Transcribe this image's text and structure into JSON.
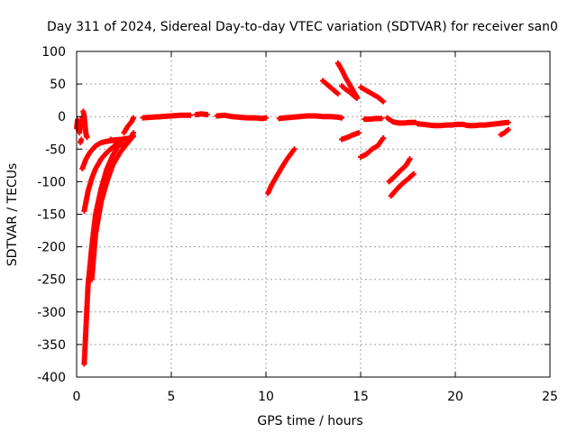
{
  "chart_data": {
    "type": "scatter",
    "title": "Day 311 of 2024, Sidereal Day-to-day VTEC variation (SDTVAR) for receiver san0",
    "xlabel": "GPS time / hours",
    "ylabel": "SDTVAR / TECUs",
    "xlim": [
      0,
      25
    ],
    "ylim": [
      -400,
      100
    ],
    "xticks": [
      0,
      5,
      10,
      15,
      20,
      25
    ],
    "yticks": [
      -400,
      -350,
      -300,
      -250,
      -200,
      -150,
      -100,
      -50,
      0,
      50,
      100
    ],
    "grid": true,
    "marker": "+",
    "series": [
      {
        "name": "SDTVAR",
        "color": "#ff0000",
        "arcs": [
          {
            "x": [
              0.0,
              0.05,
              0.1,
              0.15,
              0.2,
              0.3
            ],
            "y": [
              -18,
              -5,
              -10,
              -25,
              -12,
              -2
            ]
          },
          {
            "x": [
              0.35,
              0.4,
              0.45,
              0.5,
              0.55
            ],
            "y": [
              8,
              0,
              -15,
              -28,
              -32
            ]
          },
          {
            "x": [
              0.2,
              0.25
            ],
            "y": [
              -40,
              -35
            ]
          },
          {
            "x": [
              0.3,
              0.5,
              0.7,
              1.0,
              1.3,
              1.6,
              2.0,
              2.4,
              2.8
            ],
            "y": [
              -80,
              -65,
              -55,
              -45,
              -40,
              -38,
              -36,
              -35,
              -33
            ]
          },
          {
            "x": [
              0.4,
              0.6,
              0.8,
              1.0,
              1.3,
              1.6,
              2.0,
              2.4
            ],
            "y": [
              -145,
              -115,
              -95,
              -80,
              -65,
              -55,
              -45,
              -40
            ]
          },
          {
            "x": [
              0.4,
              0.5,
              0.6,
              0.8,
              1.0,
              1.3,
              1.6,
              1.9,
              2.2
            ],
            "y": [
              -380,
              -320,
              -260,
              -200,
              -150,
              -110,
              -80,
              -60,
              -45
            ]
          },
          {
            "x": [
              0.8,
              1.0,
              1.3,
              1.6,
              1.9,
              2.3,
              2.7,
              3.0
            ],
            "y": [
              -250,
              -180,
              -130,
              -100,
              -75,
              -55,
              -40,
              -25
            ]
          },
          {
            "x": [
              1.8,
              2.1,
              2.4,
              2.7,
              3.0
            ],
            "y": [
              -35,
              -40,
              -45,
              -40,
              -30
            ]
          },
          {
            "x": [
              2.5,
              2.7,
              2.9,
              3.0
            ],
            "y": [
              -25,
              -15,
              -8,
              -2
            ]
          },
          {
            "x": [
              3.5,
              4.0,
              4.5,
              5.0,
              5.5,
              6.0
            ],
            "y": [
              -2,
              -1,
              0,
              1,
              2,
              2
            ]
          },
          {
            "x": [
              6.3,
              6.6,
              6.9
            ],
            "y": [
              3,
              4,
              3
            ]
          },
          {
            "x": [
              7.4,
              7.8,
              8.2,
              8.6,
              9.0,
              9.4,
              9.8,
              10.0
            ],
            "y": [
              1,
              2,
              0,
              -1,
              -2,
              -2,
              -3,
              -2
            ]
          },
          {
            "x": [
              10.7,
              11.0,
              11.4,
              11.8,
              12.2,
              12.6,
              13.0,
              13.4,
              13.8,
              14.0
            ],
            "y": [
              -3,
              -2,
              -1,
              0,
              1,
              1,
              0,
              0,
              -1,
              -2
            ]
          },
          {
            "x": [
              10.1,
              10.3,
              10.5,
              10.7,
              10.9,
              11.1,
              11.3,
              11.5
            ],
            "y": [
              -118,
              -105,
              -95,
              -85,
              -75,
              -66,
              -58,
              -50
            ]
          },
          {
            "x": [
              13.0,
              13.2,
              13.4,
              13.6,
              13.8
            ],
            "y": [
              55,
              50,
              45,
              40,
              35
            ]
          },
          {
            "x": [
              13.8,
              14.0,
              14.2,
              14.4,
              14.6,
              14.8
            ],
            "y": [
              82,
              72,
              60,
              50,
              40,
              30
            ]
          },
          {
            "x": [
              14.0,
              14.2,
              14.4,
              14.6,
              14.8
            ],
            "y": [
              47,
              42,
              38,
              33,
              28
            ]
          },
          {
            "x": [
              15.0,
              15.3,
              15.6,
              15.9,
              16.2
            ],
            "y": [
              45,
              40,
              35,
              30,
              23
            ]
          },
          {
            "x": [
              14.0,
              14.3,
              14.6,
              14.9
            ],
            "y": [
              -35,
              -32,
              -28,
              -25
            ]
          },
          {
            "x": [
              15.0,
              15.3,
              15.6,
              15.9,
              16.2
            ],
            "y": [
              -62,
              -58,
              -50,
              -45,
              -33
            ]
          },
          {
            "x": [
              15.2,
              15.5,
              15.8,
              16.1
            ],
            "y": [
              -4,
              -4,
              -3,
              -3
            ]
          },
          {
            "x": [
              16.5,
              16.8,
              17.1,
              17.4,
              17.6
            ],
            "y": [
              -100,
              -92,
              -83,
              -75,
              -65
            ]
          },
          {
            "x": [
              16.6,
              16.9,
              17.2,
              17.5,
              17.8
            ],
            "y": [
              -122,
              -112,
              -103,
              -96,
              -88
            ]
          },
          {
            "x": [
              16.4,
              16.7,
              17.0,
              17.3,
              17.6,
              17.9
            ],
            "y": [
              -2,
              -8,
              -10,
              -10,
              -9,
              -9
            ]
          },
          {
            "x": [
              18.0,
              18.3,
              18.6,
              18.9,
              19.2,
              19.5,
              19.8,
              20.1,
              20.4,
              20.7,
              21.0,
              21.3,
              21.6,
              21.9,
              22.2,
              22.5,
              22.8
            ],
            "y": [
              -11,
              -12,
              -13,
              -14,
              -14,
              -13,
              -13,
              -12,
              -12,
              -14,
              -14,
              -13,
              -13,
              -12,
              -11,
              -10,
              -9
            ]
          },
          {
            "x": [
              22.4,
              22.6,
              22.8
            ],
            "y": [
              -28,
              -25,
              -20
            ]
          }
        ]
      }
    ]
  }
}
